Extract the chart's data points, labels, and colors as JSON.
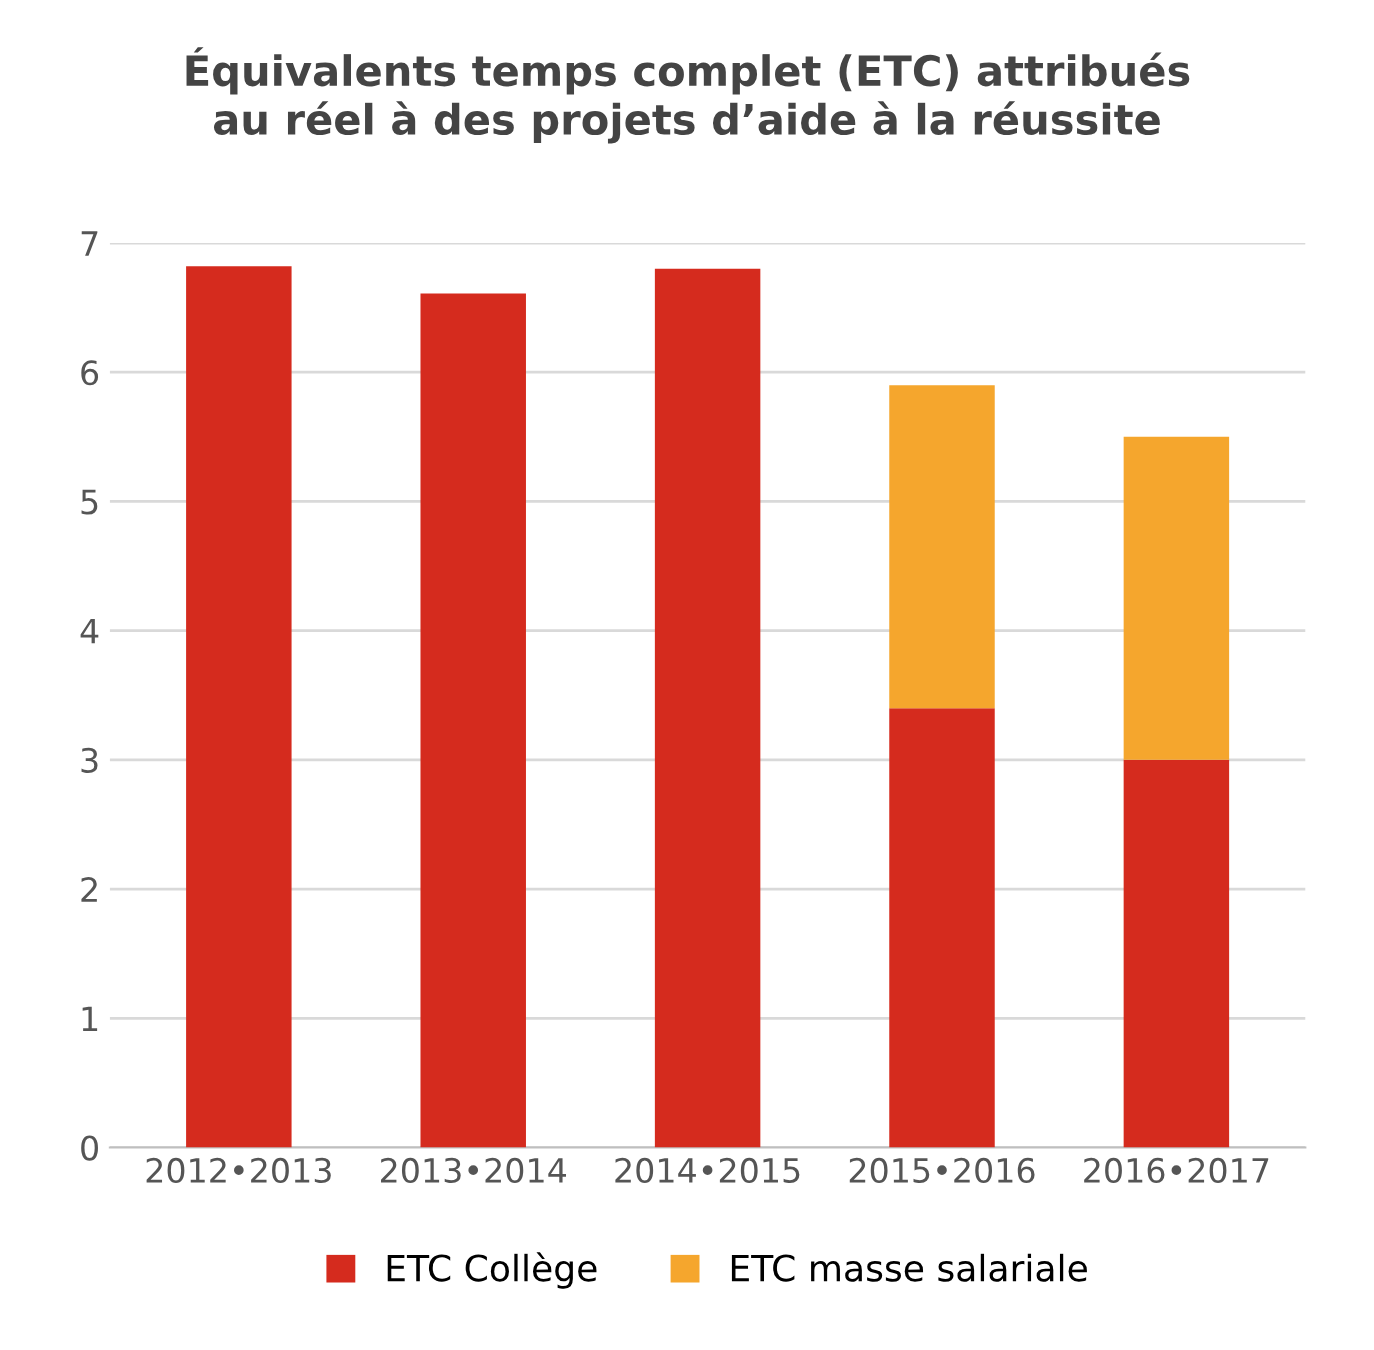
{
  "chart_data": {
    "type": "bar",
    "stacked": true,
    "title": "Équivalents temps complet (ETC) attribués\nau réel à des projets d’aide à la réussite",
    "categories": [
      "2012•2013",
      "2013•2014",
      "2014•2015",
      "2015•2016",
      "2016•2017"
    ],
    "series": [
      {
        "name": "ETC Collège",
        "color": "#d52b1e",
        "values": [
          6.82,
          6.61,
          6.8,
          3.4,
          3.0
        ]
      },
      {
        "name": "ETC masse salariale",
        "color": "#f5a62d",
        "values": [
          null,
          null,
          null,
          2.5,
          2.5
        ]
      }
    ],
    "ylim": [
      0,
      7
    ],
    "yticks": [
      0,
      1,
      2,
      3,
      4,
      5,
      6,
      7
    ],
    "grid": "y",
    "legend": "bottom"
  }
}
